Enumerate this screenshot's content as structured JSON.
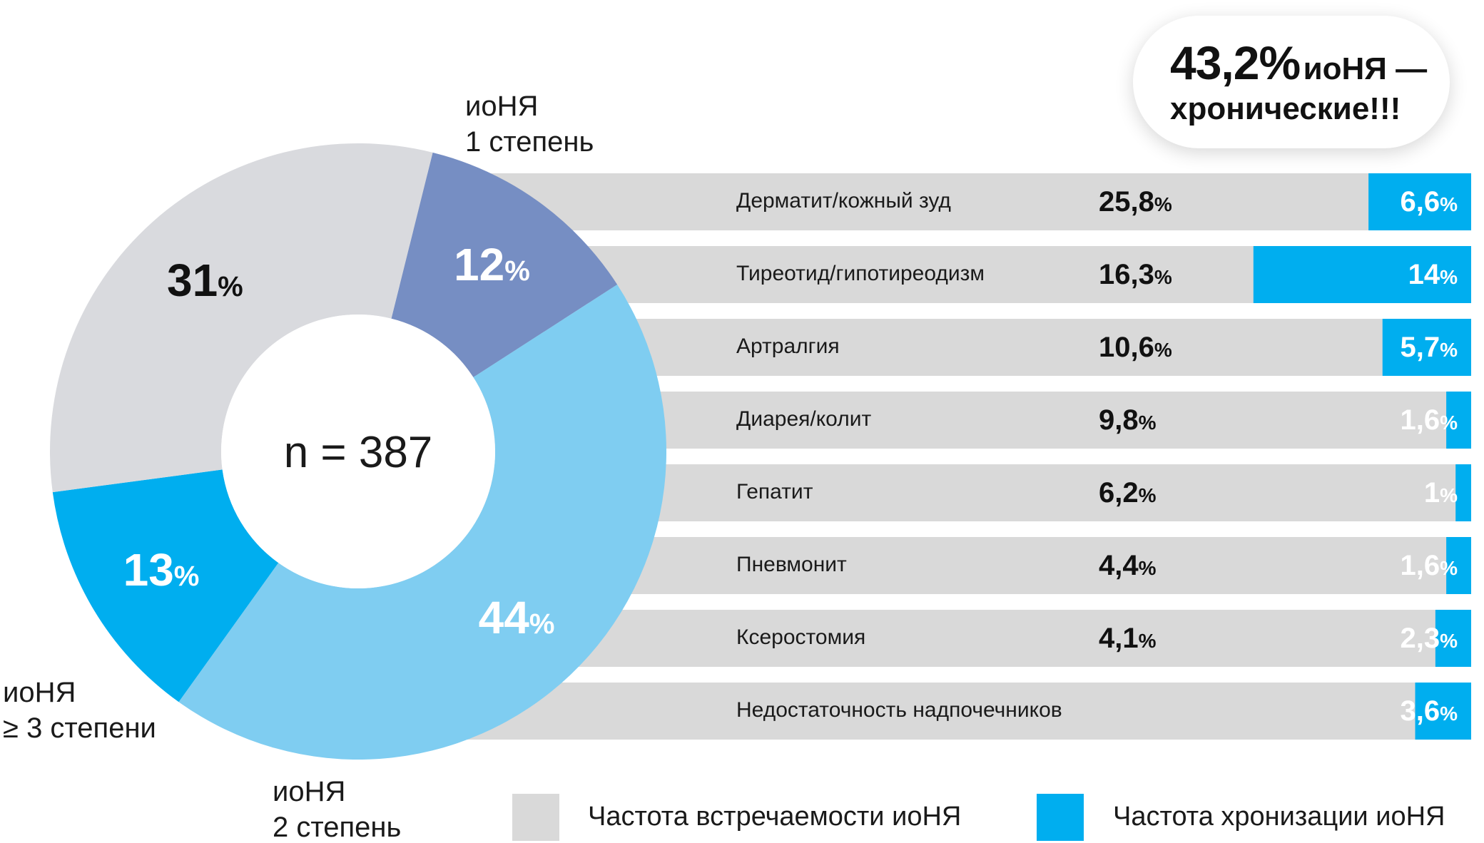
{
  "callout": {
    "value": "43,2%",
    "text_line1": "иоНЯ —",
    "text_line2": "хронические!!!"
  },
  "colors": {
    "grade1": "#768ec3",
    "grade2": "#7fcdf1",
    "grade3plus": "#00aeef",
    "grey": "#d9dade",
    "bar_grey": "#d9d9d9",
    "bar_blue": "#00aeef"
  },
  "chart_data": [
    {
      "type": "pie",
      "center_label": "n = 387",
      "slices": [
        {
          "name": "иоНЯ 1 степень",
          "label_lines": [
            "иоНЯ",
            "1 степень"
          ],
          "value": 12,
          "color": "#768ec3",
          "text_color": "#ffffff"
        },
        {
          "name": "иоНЯ 2 степень",
          "label_lines": [
            "иоНЯ",
            "2 степень"
          ],
          "value": 44,
          "color": "#7fcdf1",
          "text_color": "#ffffff"
        },
        {
          "name": "иоНЯ ≥ 3 степени",
          "label_lines": [
            "иоНЯ",
            "≥ 3 степени"
          ],
          "value": 13,
          "color": "#00aeef",
          "text_color": "#ffffff"
        },
        {
          "name": "",
          "label_lines": [],
          "value": 31,
          "color": "#d9dade",
          "text_color": "#111111"
        }
      ]
    },
    {
      "type": "bar",
      "categories": [
        "Дерматит/кожный зуд",
        "Тиреотид/гипотиреодизм",
        "Артралгия",
        "Диарея/колит",
        "Гепатит",
        "Пневмонит",
        "Ксеростомия",
        "Недостаточность надпочечников"
      ],
      "series": [
        {
          "name": "Частота встречаемости иоНЯ",
          "values": [
            25.8,
            16.3,
            10.6,
            9.8,
            6.2,
            4.4,
            4.1,
            null
          ],
          "labels": [
            "25,8",
            "16,3",
            "10,6",
            "9,8",
            "6,2",
            "4,4",
            "4,1",
            ""
          ],
          "color": "#d9d9d9"
        },
        {
          "name": "Частота хронизации иоНЯ",
          "values": [
            6.6,
            14,
            5.7,
            1.6,
            1,
            1.6,
            2.3,
            3.6
          ],
          "labels": [
            "6,6",
            "14",
            "5,7",
            "1,6",
            "1",
            "1,6",
            "2,3",
            "3,6"
          ],
          "color": "#00aeef"
        }
      ],
      "unit": "%",
      "legend": "bottom"
    }
  ]
}
